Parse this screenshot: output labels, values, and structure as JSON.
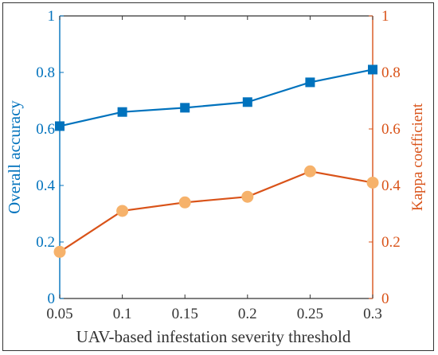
{
  "chart_data": {
    "type": "line",
    "x": [
      0.05,
      0.1,
      0.15,
      0.2,
      0.25,
      0.3
    ],
    "xlabel": "UAV-based infestation severity threshold",
    "xlim": [
      0.05,
      0.3
    ],
    "x_ticks": [
      "0.05",
      "0.1",
      "0.15",
      "0.2",
      "0.25",
      "0.3"
    ],
    "y_left": {
      "label": "Overall accuracy",
      "lim": [
        0,
        1
      ],
      "ticks": [
        "0",
        "0.2",
        "0.4",
        "0.6",
        "0.8",
        "1"
      ],
      "color": "#0072BD"
    },
    "y_right": {
      "label": "Kappa coefficient",
      "lim": [
        0,
        1
      ],
      "ticks": [
        "0",
        "0.2",
        "0.4",
        "0.6",
        "0.8",
        "1"
      ],
      "color": "#D95319"
    },
    "series": [
      {
        "axis": "left",
        "marker": "square",
        "color": "#0072BD",
        "values": [
          0.61,
          0.66,
          0.675,
          0.695,
          0.765,
          0.81
        ]
      },
      {
        "axis": "right",
        "marker": "circle",
        "color": "#D95319",
        "marker_color": "#F6B26B",
        "values": [
          0.165,
          0.31,
          0.34,
          0.36,
          0.45,
          0.41
        ]
      }
    ],
    "grid": false,
    "legend": "none"
  }
}
